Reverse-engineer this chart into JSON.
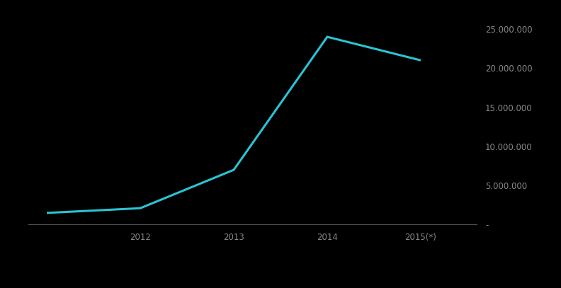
{
  "x_values": [
    0,
    1,
    2,
    3,
    4
  ],
  "y_values": [
    1500000,
    2100000,
    7000000,
    24000000,
    21000000
  ],
  "x_tick_positions": [
    1,
    2,
    3,
    4
  ],
  "x_tick_labels": [
    "2012",
    "2013",
    "2014",
    "2015(*)"
  ],
  "ylim": [
    0,
    26500000
  ],
  "yticks": [
    0,
    5000000,
    10000000,
    15000000,
    20000000,
    25000000
  ],
  "ytick_labels": [
    "-",
    "5.000.000",
    "10.000.000",
    "15.000.000",
    "20.000.000",
    "25.000.000"
  ],
  "line_color": "#29c4d4",
  "line_width": 2.2,
  "background_color": "#000000",
  "tick_color": "#888888",
  "spine_color": "#555555",
  "tick_label_fontsize": 8.5,
  "legend_fontsize": 7.5,
  "xlim_left": -0.2,
  "xlim_right": 4.6
}
